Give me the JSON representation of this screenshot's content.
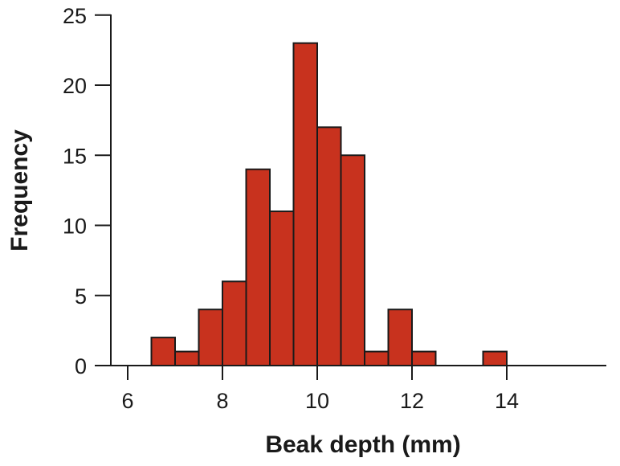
{
  "chart_data": {
    "type": "bar",
    "title": "",
    "xlabel": "Beak depth (mm)",
    "ylabel": "Frequency",
    "xlim": [
      5,
      15
    ],
    "ylim": [
      0,
      25
    ],
    "xticks": [
      6,
      8,
      10,
      12,
      14
    ],
    "yticks": [
      0,
      5,
      10,
      15,
      20,
      25
    ],
    "bin_width": 0.5,
    "bins": [
      {
        "x0": 6.5,
        "x1": 7.0,
        "value": 2
      },
      {
        "x0": 7.0,
        "x1": 7.5,
        "value": 1
      },
      {
        "x0": 7.5,
        "x1": 8.0,
        "value": 4
      },
      {
        "x0": 8.0,
        "x1": 8.5,
        "value": 6
      },
      {
        "x0": 8.5,
        "x1": 9.0,
        "value": 14
      },
      {
        "x0": 9.0,
        "x1": 9.5,
        "value": 11
      },
      {
        "x0": 9.5,
        "x1": 10.0,
        "value": 23
      },
      {
        "x0": 10.0,
        "x1": 10.5,
        "value": 17
      },
      {
        "x0": 10.5,
        "x1": 11.0,
        "value": 15
      },
      {
        "x0": 11.0,
        "x1": 11.5,
        "value": 1
      },
      {
        "x0": 11.5,
        "x1": 12.0,
        "value": 4
      },
      {
        "x0": 12.0,
        "x1": 12.5,
        "value": 1
      },
      {
        "x0": 13.5,
        "x1": 14.0,
        "value": 1
      }
    ],
    "bar_color": "#c8321e",
    "grid": false,
    "legend": "none"
  }
}
